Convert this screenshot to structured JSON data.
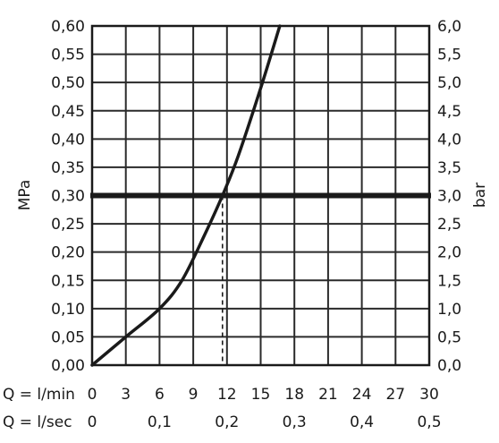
{
  "chart_data": {
    "type": "line",
    "x_unit_label": "Q = l/min",
    "x2_unit_label": "Q = l/sec",
    "ylabel_left": "MPa",
    "ylabel_right": "bar",
    "xlim": [
      0,
      30
    ],
    "ylim": [
      0,
      0.6
    ],
    "grid": true,
    "x_ticks": [
      "0",
      "3",
      "6",
      "9",
      "12",
      "15",
      "18",
      "21",
      "24",
      "27",
      "30"
    ],
    "x2_ticks": [
      {
        "value": 0,
        "label": "0"
      },
      {
        "value": 6,
        "label": "0,1"
      },
      {
        "value": 12,
        "label": "0,2"
      },
      {
        "value": 18,
        "label": "0,3"
      },
      {
        "value": 24,
        "label": "0,4"
      },
      {
        "value": 30,
        "label": "0,5"
      }
    ],
    "y_ticks_left": [
      "0,00",
      "0,05",
      "0,10",
      "0,15",
      "0,20",
      "0,25",
      "0,30",
      "0,35",
      "0,40",
      "0,45",
      "0,50",
      "0,55",
      "0,60"
    ],
    "y_ticks_right": [
      "0,0",
      "0,5",
      "1,0",
      "1,5",
      "2,0",
      "2,5",
      "3,0",
      "3,5",
      "4,0",
      "4,5",
      "5,0",
      "5,5",
      "6,0"
    ],
    "series": [
      {
        "x": [
          0,
          3,
          6,
          8,
          10,
          11.6,
          13,
          15,
          16.7
        ],
        "y": [
          0,
          0.05,
          0.1,
          0.15,
          0.23,
          0.3,
          0.37,
          0.49,
          0.6
        ]
      }
    ],
    "reference_line_y": 0.3,
    "reference_line_x": 11.6
  }
}
